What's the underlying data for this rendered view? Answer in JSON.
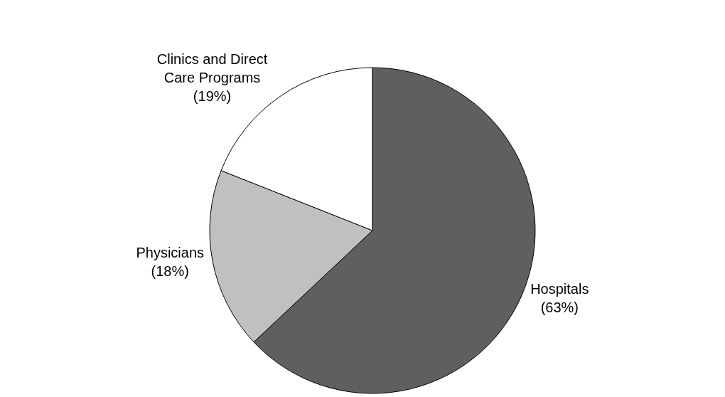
{
  "chart_data": {
    "type": "pie",
    "categories": [
      "Hospitals",
      "Physicians",
      "Clinics and Direct Care Programs"
    ],
    "values": [
      63,
      18,
      19
    ],
    "value_labels": [
      "(63%)",
      "(18%)",
      "(19%)"
    ],
    "colors": [
      "#5f5f5f",
      "#c0c0c0",
      "#ffffff"
    ],
    "legend": false
  }
}
